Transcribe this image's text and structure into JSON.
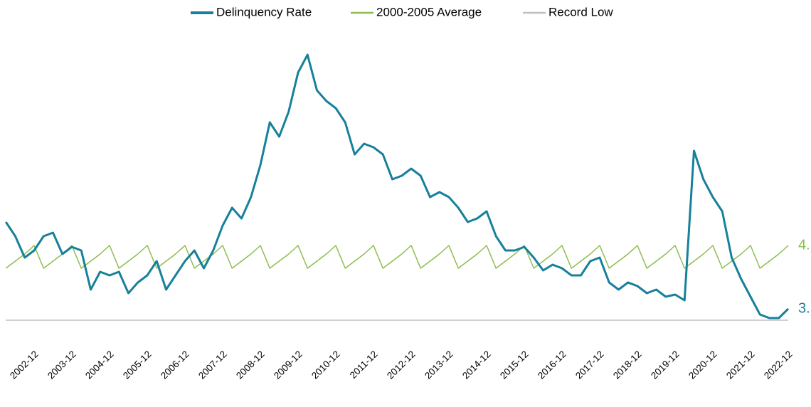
{
  "chart_data": {
    "type": "line",
    "categories": [
      null,
      null,
      null,
      "2002-12",
      null,
      null,
      null,
      "2003-12",
      null,
      null,
      null,
      "2004-12",
      null,
      null,
      null,
      "2005-12",
      null,
      null,
      null,
      "2006-12",
      null,
      null,
      null,
      "2007-12",
      null,
      null,
      null,
      "2008-12",
      null,
      null,
      null,
      "2009-12",
      null,
      null,
      null,
      "2010-12",
      null,
      null,
      null,
      "2011-12",
      null,
      null,
      null,
      "2012-12",
      null,
      null,
      null,
      "2013-12",
      null,
      null,
      null,
      "2014-12",
      null,
      null,
      null,
      "2015-12",
      null,
      null,
      null,
      "2016-12",
      null,
      null,
      null,
      "2017-12",
      null,
      null,
      null,
      "2018-12",
      null,
      null,
      null,
      "2019-12",
      null,
      null,
      null,
      "2020-12",
      null,
      null,
      null,
      "2021-12",
      null,
      null,
      null,
      "2022-12"
    ],
    "series": [
      {
        "name": "Delinquency Rate",
        "color": "#17809a",
        "width": 3,
        "values": [
          6.06,
          5.66,
          5.06,
          5.26,
          5.66,
          5.76,
          5.16,
          5.36,
          5.26,
          4.16,
          4.66,
          4.56,
          4.66,
          4.06,
          4.36,
          4.56,
          4.96,
          4.16,
          4.56,
          4.96,
          5.26,
          4.76,
          5.26,
          5.96,
          6.46,
          6.16,
          6.76,
          7.66,
          8.86,
          8.46,
          9.16,
          10.26,
          10.76,
          9.76,
          9.46,
          9.26,
          8.86,
          7.96,
          8.26,
          8.16,
          7.96,
          7.26,
          7.36,
          7.56,
          7.36,
          6.76,
          6.9,
          6.76,
          6.46,
          6.06,
          6.16,
          6.36,
          5.66,
          5.26,
          5.26,
          5.36,
          5.06,
          4.7,
          4.86,
          4.76,
          4.56,
          4.56,
          4.96,
          5.06,
          4.36,
          4.16,
          4.36,
          4.26,
          4.06,
          4.16,
          3.96,
          4.02,
          3.86,
          8.06,
          7.26,
          6.76,
          6.36,
          5.06,
          4.46,
          3.96,
          3.46,
          3.36,
          3.36,
          3.62
        ]
      },
      {
        "name": "2000-2005 Average",
        "color": "#8dbd4f",
        "width": 1.5,
        "values": [
          4.76,
          4.96,
          5.16,
          5.4,
          4.76,
          4.96,
          5.16,
          5.4,
          4.76,
          4.96,
          5.16,
          5.4,
          4.76,
          4.96,
          5.16,
          5.4,
          4.76,
          4.96,
          5.16,
          5.4,
          4.76,
          4.96,
          5.16,
          5.4,
          4.76,
          4.96,
          5.16,
          5.4,
          4.76,
          4.96,
          5.16,
          5.4,
          4.76,
          4.96,
          5.16,
          5.4,
          4.76,
          4.96,
          5.16,
          5.4,
          4.76,
          4.96,
          5.16,
          5.4,
          4.76,
          4.96,
          5.16,
          5.4,
          4.76,
          4.96,
          5.16,
          5.4,
          4.76,
          4.96,
          5.16,
          5.4,
          4.76,
          4.96,
          5.16,
          5.4,
          4.76,
          4.96,
          5.16,
          5.4,
          4.76,
          4.96,
          5.16,
          5.4,
          4.76,
          4.96,
          5.16,
          5.4,
          4.76,
          4.96,
          5.16,
          5.4,
          4.76,
          4.96,
          5.16,
          5.4,
          4.76,
          4.96,
          5.16,
          5.4
        ]
      },
      {
        "name": "Record Low",
        "color": "#bfbfbf",
        "width": 1.5,
        "values": [
          3.3,
          3.3,
          3.3,
          3.3,
          3.3,
          3.3,
          3.3,
          3.3,
          3.3,
          3.3,
          3.3,
          3.3,
          3.3,
          3.3,
          3.3,
          3.3,
          3.3,
          3.3,
          3.3,
          3.3,
          3.3,
          3.3,
          3.3,
          3.3,
          3.3,
          3.3,
          3.3,
          3.3,
          3.3,
          3.3,
          3.3,
          3.3,
          3.3,
          3.3,
          3.3,
          3.3,
          3.3,
          3.3,
          3.3,
          3.3,
          3.3,
          3.3,
          3.3,
          3.3,
          3.3,
          3.3,
          3.3,
          3.3,
          3.3,
          3.3,
          3.3,
          3.3,
          3.3,
          3.3,
          3.3,
          3.3,
          3.3,
          3.3,
          3.3,
          3.3,
          3.3,
          3.3,
          3.3,
          3.3,
          3.3,
          3.3,
          3.3,
          3.3,
          3.3,
          3.3,
          3.3,
          3.3,
          3.3,
          3.3,
          3.3,
          3.3,
          3.3,
          3.3,
          3.3,
          3.3,
          3.3,
          3.3,
          3.3,
          3.3
        ]
      }
    ],
    "end_labels": [
      "3.",
      "4."
    ],
    "ylim": [
      2.5,
      11.5
    ],
    "legend": "top"
  }
}
